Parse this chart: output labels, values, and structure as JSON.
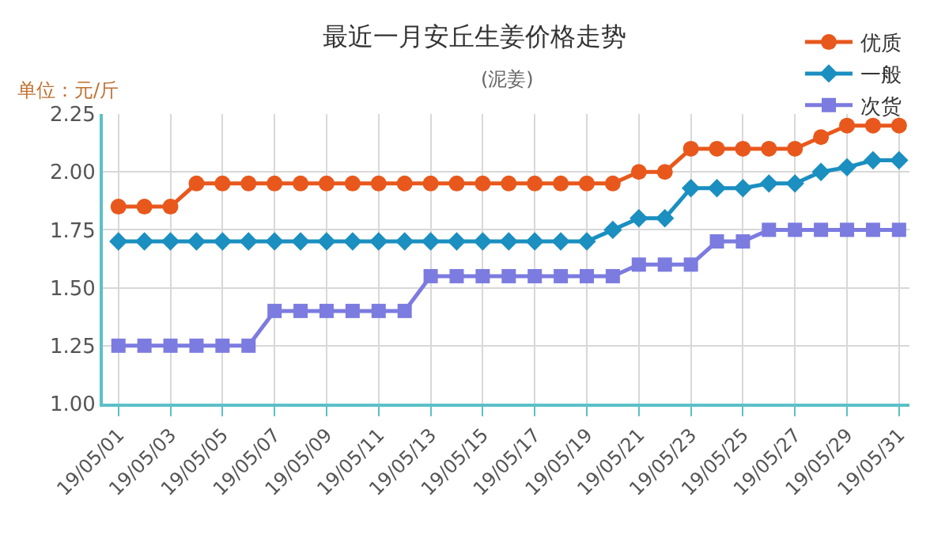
{
  "chart_data": {
    "type": "line",
    "title": "最近一月安丘生姜价格走势",
    "subtitle": "(泥姜)",
    "annotations": [
      "单位：元/斤"
    ],
    "categories": [
      "19/05/01",
      null,
      "19/05/03",
      null,
      "19/05/05",
      null,
      "19/05/07",
      null,
      "19/05/09",
      null,
      "19/05/11",
      null,
      "19/05/13",
      null,
      "19/05/15",
      null,
      "19/05/17",
      null,
      "19/05/19",
      null,
      "19/05/21",
      null,
      "19/05/23",
      null,
      "19/05/25",
      null,
      "19/05/27",
      null,
      "19/05/29",
      null,
      "19/05/31"
    ],
    "series": [
      {
        "name": "优质",
        "color": "#e8581c",
        "marker": "circle",
        "values": [
          1.85,
          1.85,
          1.85,
          1.95,
          1.95,
          1.95,
          1.95,
          1.95,
          1.95,
          1.95,
          1.95,
          1.95,
          1.95,
          1.95,
          1.95,
          1.95,
          1.95,
          1.95,
          1.95,
          1.95,
          2.0,
          2.0,
          2.1,
          2.1,
          2.1,
          2.1,
          2.1,
          2.15,
          2.2,
          2.2,
          2.2
        ]
      },
      {
        "name": "一般",
        "color": "#1a8fc0",
        "marker": "diamond",
        "values": [
          1.7,
          1.7,
          1.7,
          1.7,
          1.7,
          1.7,
          1.7,
          1.7,
          1.7,
          1.7,
          1.7,
          1.7,
          1.7,
          1.7,
          1.7,
          1.7,
          1.7,
          1.7,
          1.7,
          1.75,
          1.8,
          1.8,
          1.93,
          1.93,
          1.93,
          1.95,
          1.95,
          2.0,
          2.02,
          2.05,
          2.05
        ]
      },
      {
        "name": "次货",
        "color": "#7b7be0",
        "marker": "square",
        "values": [
          1.25,
          1.25,
          1.25,
          1.25,
          1.25,
          1.25,
          1.4,
          1.4,
          1.4,
          1.4,
          1.4,
          1.4,
          1.55,
          1.55,
          1.55,
          1.55,
          1.55,
          1.55,
          1.55,
          1.55,
          1.6,
          1.6,
          1.6,
          1.7,
          1.7,
          1.75,
          1.75,
          1.75,
          1.75,
          1.75,
          1.75
        ]
      }
    ],
    "ylim": [
      1.0,
      2.25
    ],
    "yticks": [
      {
        "value": 1.0,
        "label": "1.00"
      },
      {
        "value": 1.25,
        "label": "1.25"
      },
      {
        "value": 1.5,
        "label": "1.50"
      },
      {
        "value": 1.75,
        "label": "1.75"
      },
      {
        "value": 2.0,
        "label": "2.00"
      },
      {
        "value": 2.25,
        "label": "2.25"
      }
    ],
    "grid": true,
    "legend": "top right"
  }
}
